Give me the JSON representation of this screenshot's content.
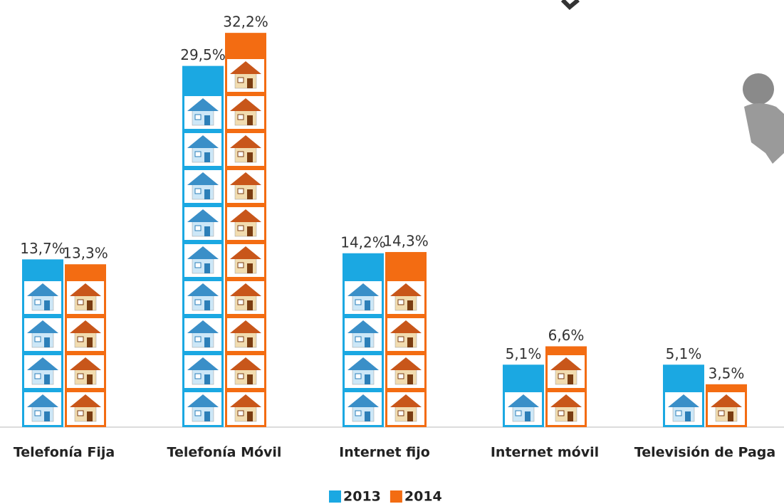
{
  "chart_data": {
    "type": "bar",
    "categories": [
      "Telefonía Fija",
      "Telefonía Móvil",
      "Internet fijo",
      "Internet móvil",
      "Televisión de Paga"
    ],
    "series": [
      {
        "name": "2013",
        "color": "#1ba8e2",
        "values": [
          13.7,
          29.5,
          14.2,
          5.1,
          5.1
        ],
        "value_labels": [
          "13,7%",
          "29,5%",
          "14,2%",
          "5,1%",
          "5,1%"
        ]
      },
      {
        "name": "2014",
        "color": "#f36c12",
        "values": [
          13.3,
          32.2,
          14.3,
          6.6,
          3.5
        ],
        "value_labels": [
          "13,3%",
          "32,2%",
          "14,3%",
          "6,6%",
          "3,5%"
        ]
      }
    ],
    "legend": "bottom"
  }
}
